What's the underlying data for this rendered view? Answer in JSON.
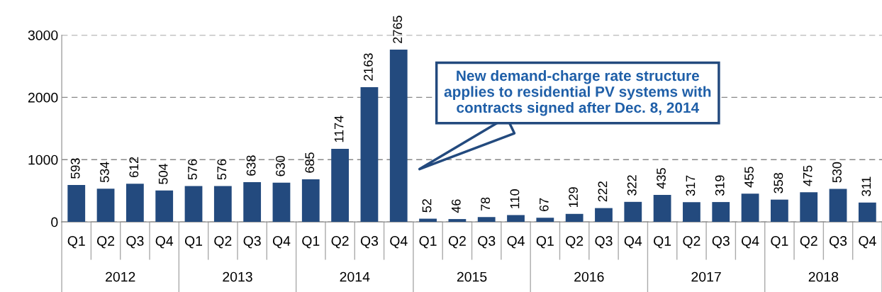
{
  "chart_data": {
    "type": "bar",
    "categories": [
      "Q1",
      "Q2",
      "Q3",
      "Q4",
      "Q1",
      "Q2",
      "Q3",
      "Q4",
      "Q1",
      "Q2",
      "Q3",
      "Q4",
      "Q1",
      "Q2",
      "Q3",
      "Q4",
      "Q1",
      "Q2",
      "Q3",
      "Q4",
      "Q1",
      "Q2",
      "Q3",
      "Q4",
      "Q1",
      "Q2",
      "Q3",
      "Q4"
    ],
    "values": [
      593,
      534,
      612,
      504,
      576,
      576,
      638,
      630,
      685,
      1174,
      2163,
      2765,
      52,
      46,
      78,
      110,
      67,
      129,
      222,
      322,
      435,
      317,
      319,
      455,
      358,
      475,
      530,
      311
    ],
    "color": "#234a7e",
    "ylim": [
      0,
      3000
    ],
    "yticks": [
      0,
      1000,
      2000,
      3000
    ],
    "grid": "y",
    "data_labels": true,
    "annotations": [
      "2012",
      "2013",
      "2014",
      "2015",
      "2016",
      "2017",
      "2018",
      "New demand-charge rate structure\napplies to residential PV systems with\ncontracts signed after Dec. 8, 2014"
    ]
  }
}
